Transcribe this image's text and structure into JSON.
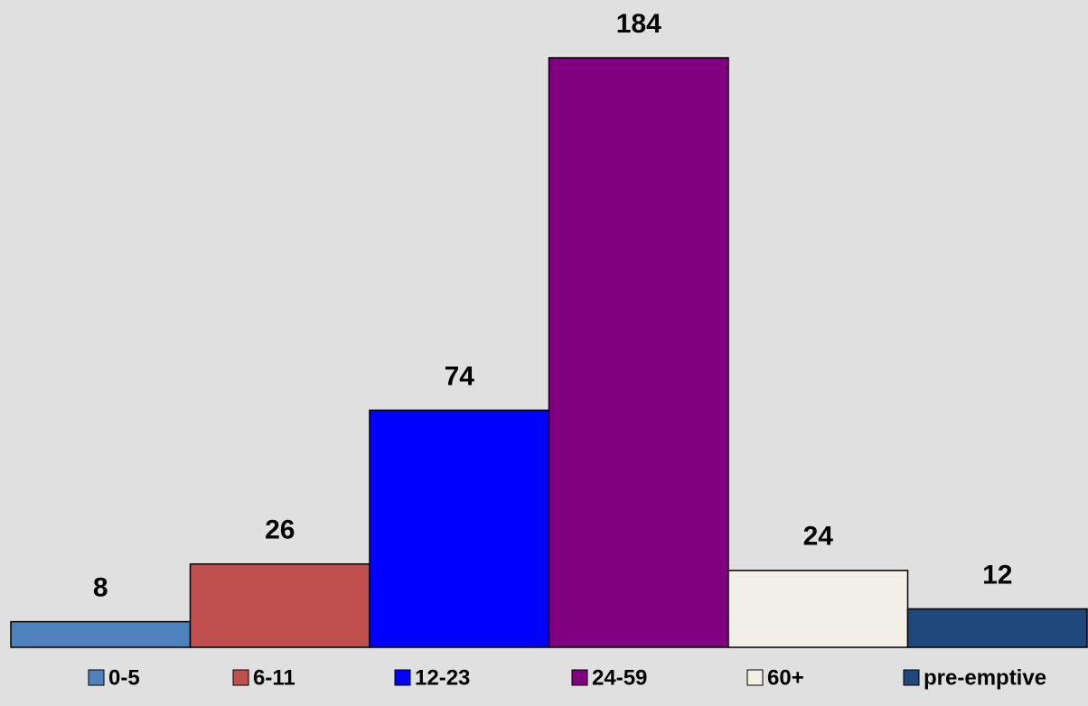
{
  "chart_data": {
    "type": "bar",
    "series": [
      {
        "name": "0-5",
        "color": "#4f81bd",
        "values": [
          8
        ]
      },
      {
        "name": "6-11",
        "color": "#c0504d",
        "values": [
          26
        ]
      },
      {
        "name": "12-23",
        "color": "#0000ff",
        "values": [
          74
        ]
      },
      {
        "name": "24-59",
        "color": "#800080",
        "values": [
          184
        ]
      },
      {
        "name": "60+",
        "color": "#f2f0e6",
        "values": [
          24
        ]
      },
      {
        "name": "pre-emptive",
        "color": "#1f497d",
        "values": [
          12
        ]
      }
    ],
    "legend": "bottom"
  }
}
